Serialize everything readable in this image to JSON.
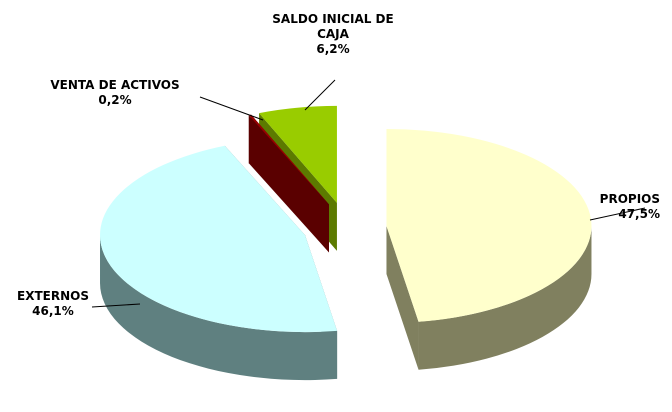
{
  "chart_data": {
    "type": "pie3d",
    "categories": [
      "PROPIOS",
      "EXTERNOS",
      "VENTA DE ACTIVOS",
      "SALDO INICIAL DE CAJA"
    ],
    "values": [
      47.5,
      46.1,
      0.2,
      6.2
    ],
    "value_labels": [
      "47,5%",
      "46,1%",
      "0,2%",
      "6,2%"
    ],
    "colors": [
      "#ffffcc",
      "#ccffff",
      "#990000",
      "#99cc00"
    ],
    "side_colors": [
      "#80805f",
      "#5f8080",
      "#5a0000",
      "#5c7a00"
    ]
  }
}
